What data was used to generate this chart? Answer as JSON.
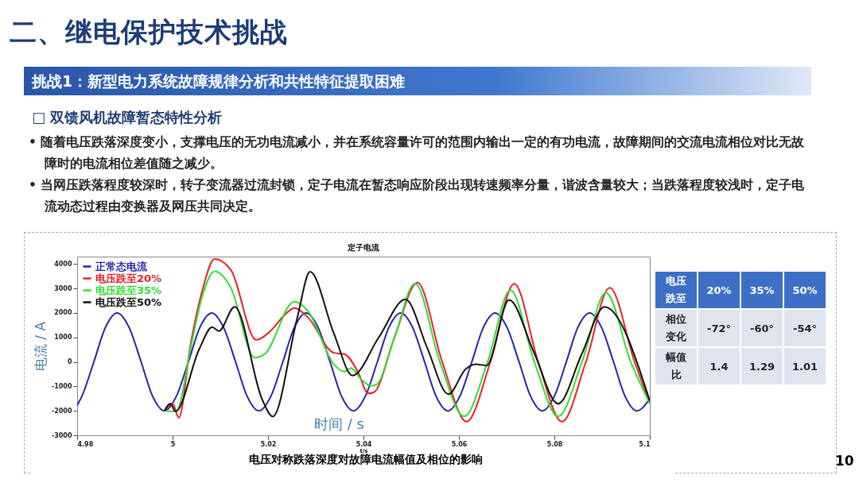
{
  "chart_data": [
    {
      "type": "other",
      "title": "二、继电保护技术挑战",
      "subtitle": "挑战1：新型电力系统故障规律分析和共性特征提取困难",
      "annotations": [
        "□ 双馈风机故障暂态特性分析",
        "• 随着电压跌落深度变小，支撑电压的无功电流减小，并在系统容量许可的范围内输出一定的有功电流，故障期间的交流电流相位对比无故障时的电流相位差值随之减少。",
        "• 当网压跌落程度较深时，转子变流器过流封锁，定子电流在暂态响应阶段出现转速频率分量，谐波含量较大；当跌落程度较浅时，定子电流动态过程由变换器及网压共同决定。",
        "10"
      ]
    },
    {
      "type": "line",
      "title": "定子电流",
      "xlabel": "t/s",
      "ylabel": "电流 / A",
      "annotations": [
        "时间 / s",
        "电压对称跌落深度对故障电流幅值及相位的影响"
      ],
      "xlim": [
        4.98,
        5.1
      ],
      "xticks": [
        4.98,
        5,
        5.02,
        5.04,
        5.06,
        5.08,
        5.1
      ],
      "ylim": [
        -3000,
        4300
      ],
      "yticks": [
        -3000,
        -2000,
        -1000,
        0,
        1000,
        2000,
        3000,
        4000
      ],
      "grid": false,
      "legend": "top left",
      "series": [
        {
          "name": "正常态电流",
          "color": "#2424a8",
          "x": [
            4.98,
            4.981,
            4.9835,
            4.9859,
            4.9884,
            4.9909,
            4.9934,
            4.9958,
            4.9983,
            5.0008,
            5.0033,
            5.0057,
            5.0082,
            5.0107,
            5.0132,
            5.0156,
            5.0181,
            5.0206,
            5.0231,
            5.0255,
            5.028,
            5.0305,
            5.033,
            5.0354,
            5.0379,
            5.0404,
            5.0429,
            5.0453,
            5.0478,
            5.0503,
            5.0528,
            5.0552,
            5.0577,
            5.0602,
            5.0627,
            5.0651,
            5.0676,
            5.0701,
            5.0726,
            5.075,
            5.0775,
            5.08,
            5.0825,
            5.0849,
            5.0874,
            5.0899,
            5.0924,
            5.0948,
            5.0973,
            5.1
          ],
          "values": [
            -1780,
            -1400,
            0,
            1400,
            2000,
            1400,
            0,
            -1400,
            -2000,
            -1400,
            0,
            1400,
            2000,
            1400,
            0,
            -1400,
            -2000,
            -1400,
            0,
            1400,
            2000,
            1400,
            0,
            -1400,
            -2000,
            -1400,
            0,
            1400,
            2000,
            1400,
            0,
            -1400,
            -2000,
            -1400,
            0,
            1400,
            2000,
            1400,
            0,
            -1400,
            -2000,
            -1400,
            0,
            1400,
            2000,
            1400,
            0,
            -1400,
            -2000,
            -1500
          ]
        },
        {
          "name": "电压跌至20%",
          "color": "#e82028",
          "x": [
            4.9983,
            5.0,
            5.0013,
            5.0038,
            5.0061,
            5.0088,
            5.0122,
            5.0175,
            5.0205,
            5.0233,
            5.0255,
            5.0283,
            5.0338,
            5.036,
            5.0388,
            5.041,
            5.0422,
            5.0465,
            5.0513,
            5.0565,
            5.0616,
            5.0666,
            5.0716,
            5.0766,
            5.0816,
            5.0866,
            5.0916,
            5.0968,
            5.1
          ],
          "values": [
            -2000,
            -1700,
            -2280,
            750,
            2820,
            4200,
            3760,
            900,
            1260,
            1880,
            2200,
            1830,
            370,
            320,
            -400,
            -1290,
            -1240,
            1000,
            3240,
            0,
            -2440,
            0,
            3190,
            0,
            -2440,
            0,
            3030,
            0,
            -1700
          ]
        },
        {
          "name": "电压跌至35%",
          "color": "#33dd33",
          "x": [
            4.9983,
            5.0008,
            5.0038,
            5.0061,
            5.0088,
            5.0122,
            5.0172,
            5.0193,
            5.0255,
            5.0283,
            5.0338,
            5.036,
            5.0374,
            5.0393,
            5.0416,
            5.0427,
            5.0465,
            5.0508,
            5.056,
            5.0611,
            5.066,
            5.0708,
            5.0758,
            5.0808,
            5.0858,
            5.0908,
            5.096,
            5.1
          ],
          "values": [
            -2000,
            -2020,
            600,
            2600,
            3700,
            3030,
            170,
            320,
            2460,
            2090,
            -100,
            -400,
            -250,
            -670,
            -980,
            -930,
            1000,
            3200,
            0,
            -2230,
            0,
            2930,
            0,
            -2230,
            0,
            2820,
            0,
            -1700
          ]
        },
        {
          "name": "电压跌至50%",
          "color": "#111111",
          "x": [
            4.9983,
            4.9995,
            5.0006,
            5.0056,
            5.0083,
            5.0097,
            5.013,
            5.0188,
            5.021,
            5.0261,
            5.0288,
            5.0338,
            5.0377,
            5.0432,
            5.0488,
            5.0533,
            5.0578,
            5.0614,
            5.0636,
            5.0658,
            5.0705,
            5.0757,
            5.0808,
            5.0857,
            5.0905,
            5.1
          ],
          "values": [
            -2000,
            -1700,
            -2020,
            530,
            1420,
            1260,
            2250,
            -1550,
            -2230,
            1780,
            3680,
            1160,
            -560,
            1000,
            2560,
            600,
            -1320,
            -300,
            -100,
            -150,
            2530,
            400,
            -1710,
            300,
            2250,
            -1600
          ]
        }
      ]
    },
    {
      "type": "other",
      "xlabel": "电压跌至",
      "categories": [
        "20%",
        "35%",
        "50%"
      ],
      "y_categories": [
        "相位变化",
        "幅值比"
      ],
      "cell_labels": [
        [
          "-72°",
          "-60°",
          "-54°"
        ],
        [
          "1.4",
          "1.29",
          "1.01"
        ]
      ]
    }
  ]
}
